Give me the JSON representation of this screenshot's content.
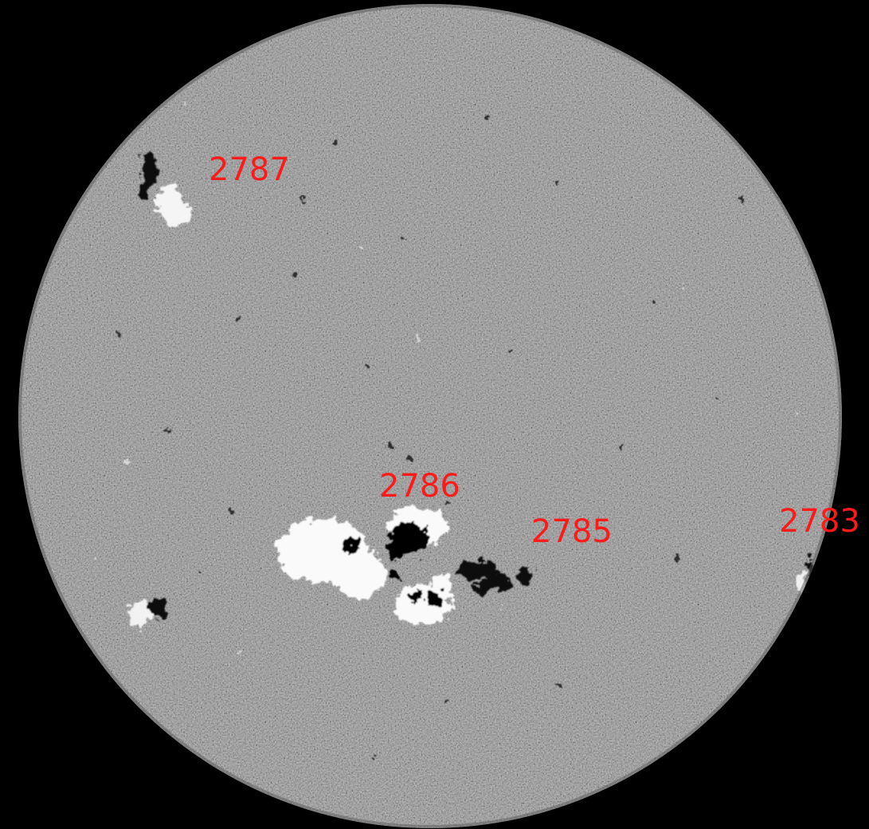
{
  "image": {
    "subject": "solar-disk-magnetogram",
    "background_color": "#000000",
    "disk_color": "#808080",
    "label_color": "#ff1a1a",
    "positive_polarity_color": "#ffffff",
    "negative_polarity_color": "#000000"
  },
  "region_labels": {
    "r2787": "2787",
    "r2786": "2786",
    "r2785": "2785",
    "r2783": "2783"
  }
}
